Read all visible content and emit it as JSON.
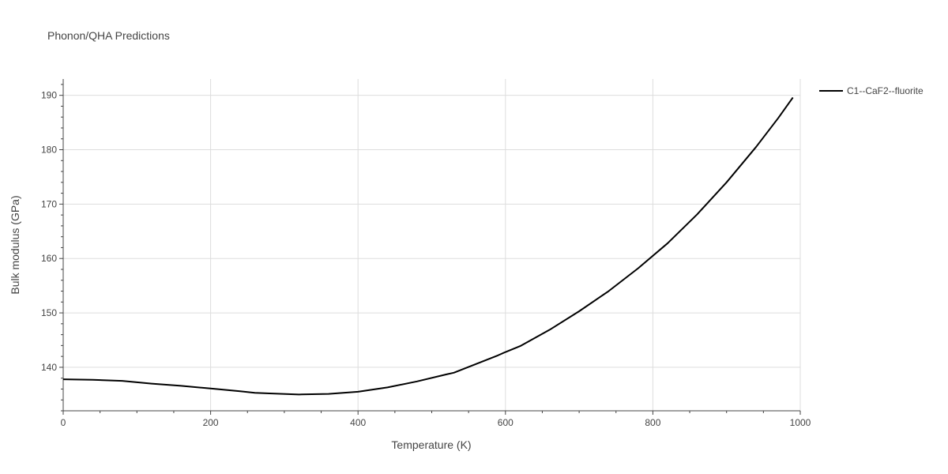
{
  "chart_data": {
    "type": "line",
    "title": "Phonon/QHA Predictions",
    "xlabel": "Temperature (K)",
    "ylabel": "Bulk modulus (GPa)",
    "xlim": [
      0,
      1000
    ],
    "ylim": [
      132,
      193
    ],
    "xticks": [
      0,
      200,
      400,
      600,
      800,
      1000
    ],
    "xminor_step": 50,
    "yticks": [
      140,
      150,
      160,
      170,
      180,
      190
    ],
    "grid": true,
    "legend_position": "top-right",
    "series": [
      {
        "name": "C1--CaF2--fluorite",
        "color": "#000000",
        "x": [
          0,
          40,
          80,
          120,
          160,
          200,
          240,
          260,
          280,
          320,
          360,
          400,
          440,
          480,
          520,
          530,
          560,
          590,
          600,
          620,
          660,
          700,
          740,
          780,
          820,
          860,
          900,
          940,
          970,
          990
        ],
        "y": [
          137.8,
          137.7,
          137.5,
          137.0,
          136.6,
          136.1,
          135.6,
          135.3,
          135.2,
          135.0,
          135.1,
          135.5,
          136.3,
          137.4,
          138.7,
          139.0,
          140.6,
          142.2,
          142.8,
          143.9,
          146.9,
          150.3,
          154.0,
          158.2,
          162.8,
          168.1,
          174.0,
          180.5,
          185.8,
          189.6
        ]
      }
    ]
  }
}
